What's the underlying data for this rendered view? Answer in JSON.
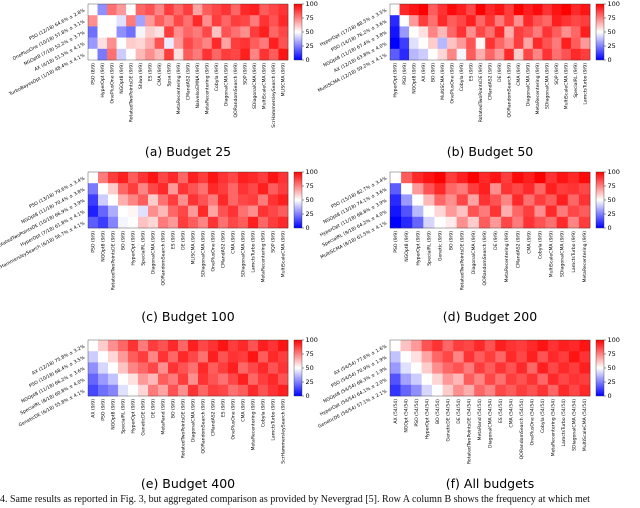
{
  "footer_text": "4.  Same results as reported in Fig. 3, but aggregated comparison as provided by Nevergrad [5]. Row A column B shows the frequency at which met",
  "colormap": {
    "low": "#0000ff",
    "mid": "#ffffff",
    "high": "#ff0000",
    "vmin": 0,
    "vmax": 100,
    "ticks": [
      0,
      25,
      50,
      75,
      100
    ]
  },
  "chart_data": [
    {
      "type": "heatmap",
      "caption": "(a) Budget 25",
      "rows": [
        "PSO (12/18) 64.6% ± 2.8%",
        "OnePlusOne (10/18) 57.8% ± 3.1%",
        "NGOpt8 (7/18) 52.2% ± 3.7%",
        "AX (4/18) 51.5% ± 4.1%",
        "TurboBayesOpt (1/18) 48.4% ± 4.1%"
      ],
      "columns": [
        "PSO (8/9)",
        "HyperOpt (9/9)",
        "OnePlusOne (9/9)",
        "NGOpt8 (9/9)",
        "RotatedTwoPointsDE (9/9)",
        "Shiwa (9/9)",
        "ES (9/9)",
        "CMA (9/9)",
        "Spsa (9/9)",
        "MetaRecentering (9/9)",
        "CMandAS2 (9/9)",
        "NaiveIsoEMNA (9/9)",
        "MetaRecentering (9/9)",
        "Cobyla (9/9)",
        "DiagonalCMA (9/9)",
        "QORandomSearch (9/9)",
        "SQP (9/9)",
        "SDiagonalCMA (9/9)",
        "MultiScaleCMA (9/9)",
        "ScrHammersleySearch (9/9)",
        "MLISCMA (9/9)"
      ],
      "values": [
        [
          null,
          28,
          78,
          70,
          50,
          80,
          84,
          74,
          88,
          80,
          88,
          68,
          82,
          86,
          90,
          80,
          92,
          94,
          82,
          86,
          90
        ],
        [
          72,
          null,
          50,
          44,
          76,
          32,
          70,
          82,
          74,
          86,
          78,
          92,
          72,
          88,
          80,
          88,
          86,
          76,
          90,
          84,
          92
        ],
        [
          22,
          50,
          null,
          28,
          22,
          48,
          60,
          56,
          88,
          72,
          80,
          76,
          86,
          62,
          84,
          78,
          72,
          88,
          94,
          80,
          86
        ],
        [
          30,
          56,
          72,
          null,
          60,
          58,
          66,
          84,
          46,
          70,
          86,
          80,
          74,
          92,
          68,
          88,
          90,
          82,
          76,
          94,
          84
        ],
        [
          50,
          24,
          78,
          40,
          null,
          64,
          72,
          64,
          88,
          56,
          82,
          76,
          90,
          80,
          88,
          86,
          94,
          74,
          90,
          82,
          96
        ]
      ],
      "cbar_ticks": [
        "100",
        "75",
        "50",
        "25",
        "0"
      ]
    },
    {
      "type": "heatmap",
      "caption": "(b) Budget 50",
      "rows": [
        "HyperOpt (17/18) 88.5% ± 3.5%",
        "PSO (14/18) 76.2% ± 3.6%",
        "NGOpt8 (11/18) 67.4% ± 3.8%",
        "AX (12/18) 63.8% ± 4.0%",
        "MultiSCMA (12/18) 59.2% ± 4.1%"
      ],
      "columns": [
        "HyperOpt (9/9)",
        "PSO (9/9)",
        "NGOpt8 (9/9)",
        "AX (9/9)",
        "BO (9/9)",
        "MultiSCMA (9/9)",
        "OnePlusOne (9/9)",
        "Cobyla (9/9)",
        "ES (9/9)",
        "RotatedTwoPointsDE (9/9)",
        "CMandAS2 (9/9)",
        "DE (9/9)",
        "QORandomSearch (9/9)",
        "CMA (9/9)",
        "DiagonalCMA (9/9)",
        "MetaRecentering (9/9)",
        "SDiagonalCMA (9/9)",
        "SQP (9/9)",
        "MultiScaleCMA (9/9)",
        "SpecialRL (9/9)",
        "LamctsTurbo (9/9)"
      ],
      "values": [
        [
          null,
          92,
          96,
          100,
          82,
          90,
          98,
          94,
          86,
          100,
          92,
          96,
          88,
          100,
          94,
          98,
          90,
          96,
          100,
          92,
          96
        ],
        [
          8,
          null,
          70,
          88,
          78,
          92,
          82,
          86,
          94,
          80,
          90,
          76,
          88,
          72,
          92,
          84,
          80,
          94,
          90,
          86,
          88
        ],
        [
          4,
          30,
          null,
          56,
          74,
          64,
          80,
          90,
          72,
          86,
          78,
          92,
          66,
          88,
          84,
          76,
          90,
          82,
          72,
          80,
          94
        ],
        [
          0,
          12,
          44,
          null,
          60,
          36,
          62,
          70,
          84,
          52,
          90,
          80,
          72,
          88,
          68,
          92,
          84,
          76,
          94,
          82,
          70
        ],
        [
          18,
          8,
          36,
          40,
          null,
          58,
          74,
          48,
          82,
          66,
          80,
          70,
          92,
          60,
          86,
          74,
          90,
          78,
          84,
          92,
          88
        ]
      ],
      "cbar_ticks": [
        "100",
        "75",
        "50",
        "25",
        "0"
      ]
    },
    {
      "type": "heatmap",
      "caption": "(c) Budget 100",
      "rows": [
        "PSO (13/18) 79.6% ± 3.4%",
        "NGOpt8 (11/18) 70.4% ± 3.8%",
        "RotatedTwoPointsDE (10/18) 66.9% ± 3.9%",
        "HyperOpt (7/18) 61.8% ± 4.1%",
        "ScrHammersleySearch (6/18) 56.7% ± 4.1%"
      ],
      "columns": [
        "PSO (9/9)",
        "NGOpt8 (9/9)",
        "RotatedTwoPointsDE (9/9)",
        "BO (9/9)",
        "HyperOpt (9/9)",
        "SpecialRL (9/9)",
        "DiagonalCMA (9/9)",
        "QORandomSearch (9/9)",
        "ES (9/9)",
        "DE (9/9)",
        "MLISCMA (9/9)",
        "SDiagonalCMA (9/9)",
        "OnePlusOne (9/9)",
        "CMandAS2 (9/9)",
        "CMA (9/9)",
        "SDiagonalCMA (9/9)",
        "LamctsTurbo (9/9)",
        "MetaRecentering (9/9)",
        "SQP (9/9)",
        "MultiScaleCMA (9/9)"
      ],
      "values": [
        [
          null,
          76,
          88,
          94,
          82,
          90,
          96,
          86,
          92,
          80,
          94,
          88,
          96,
          90,
          86,
          94,
          92,
          88,
          96,
          90
        ],
        [
          24,
          null,
          60,
          80,
          88,
          74,
          86,
          92,
          70,
          90,
          84,
          78,
          92,
          88,
          80,
          90,
          86,
          94,
          82,
          88
        ],
        [
          12,
          40,
          null,
          66,
          74,
          82,
          60,
          78,
          88,
          72,
          90,
          84,
          76,
          92,
          80,
          86,
          88,
          76,
          90,
          94
        ],
        [
          6,
          20,
          34,
          null,
          52,
          44,
          72,
          64,
          80,
          86,
          70,
          92,
          68,
          84,
          90,
          78,
          72,
          90,
          86,
          82
        ],
        [
          18,
          12,
          26,
          48,
          null,
          62,
          58,
          76,
          70,
          88,
          82,
          74,
          90,
          78,
          86,
          82,
          94,
          80,
          88,
          92
        ]
      ],
      "cbar_ticks": [
        "100",
        "75",
        "50",
        "25",
        "0"
      ]
    },
    {
      "type": "heatmap",
      "caption": "(d) Budget 200",
      "rows": [
        "PSO (15/18) 82.7% ± 3.4%",
        "NGOpt8 (13/18) 74.1% ± 3.6%",
        "HyperOpt (11/18) 68.8% ± 3.9%",
        "SpecialRL (9/18) 64.2% ± 4.0%",
        "MultiSCMA (8/18) 61.5% ± 4.1%"
      ],
      "columns": [
        "PSO (9/9)",
        "NGOpt8 (9/9)",
        "HyperOpt (9/9)",
        "SpecialRL (9/9)",
        "Genetic (9/9)",
        "BO (9/9)",
        "RotatedTwoPointsDE (9/9)",
        "DiagonalCMA (9/9)",
        "QORandomSearch (9/9)",
        "DE (9/9)",
        "MetaRecentering (9/9)",
        "CMandAS2 (9/9)",
        "CMA (9/9)",
        "Cobyla (9/9)",
        "MultiScaleCMA (9/9)",
        "SDiagonalCMA (9/9)",
        "LamctsTurbo (9/9)",
        "MetaRecentering (9/9)"
      ],
      "values": [
        [
          null,
          82,
          92,
          96,
          100,
          88,
          94,
          100,
          92,
          96,
          88,
          98,
          94,
          100,
          90,
          96,
          92,
          98
        ],
        [
          18,
          null,
          70,
          84,
          92,
          80,
          76,
          88,
          94,
          72,
          90,
          86,
          92,
          80,
          94,
          88,
          90,
          86
        ],
        [
          8,
          30,
          null,
          64,
          80,
          72,
          86,
          68,
          90,
          84,
          74,
          92,
          78,
          88,
          82,
          94,
          80,
          90
        ],
        [
          4,
          16,
          36,
          null,
          58,
          70,
          62,
          84,
          76,
          90,
          66,
          80,
          88,
          72,
          92,
          76,
          86,
          82
        ],
        [
          0,
          8,
          20,
          42,
          null,
          54,
          72,
          60,
          82,
          70,
          86,
          76,
          90,
          84,
          78,
          92,
          74,
          88
        ]
      ],
      "cbar_ticks": [
        "100",
        "75",
        "50",
        "25",
        "0"
      ]
    },
    {
      "type": "heatmap",
      "caption": "(e) Budget 400",
      "rows": [
        "AX (12/18) 75.8% ± 3.2%",
        "PSO (10/18) 68.4% ± 3.5%",
        "NGOpt8 (11/18) 66.2% ± 3.6%",
        "SpecialRL (8/18) 60.8% ± 4.0%",
        "GeneticDE (6/18) 55.8% ± 4.1%"
      ],
      "columns": [
        "AX (9/9)",
        "PSO (9/9)",
        "NGOpt8 (9/9)",
        "SpecialRL (9/9)",
        "HyperOpt (9/9)",
        "GeneticDE (9/9)",
        "DE (9/9)",
        "MetaRand (9/9)",
        "BO (9/9)",
        "RotatedTwoPointsDE (9/9)",
        "DiagonalCMA (9/9)",
        "QORandomSearch (9/9)",
        "CMandAS2 (9/9)",
        "ES (9/9)",
        "OnePlusOne (9/9)",
        "CMA (9/9)",
        "MetaRecentering (9/9)",
        "Cobyla (9/9)",
        "LamctsTurbo (9/9)",
        "ScrHammersleySearch (9/9)"
      ],
      "values": [
        [
          null,
          60,
          72,
          80,
          90,
          76,
          88,
          84,
          92,
          80,
          94,
          86,
          90,
          96,
          88,
          92,
          84,
          94,
          90,
          96
        ],
        [
          40,
          null,
          58,
          70,
          82,
          88,
          74,
          90,
          80,
          92,
          86,
          78,
          94,
          84,
          90,
          88,
          96,
          82,
          92,
          88
        ],
        [
          28,
          42,
          null,
          62,
          74,
          80,
          86,
          72,
          90,
          84,
          78,
          92,
          82,
          88,
          94,
          80,
          86,
          92,
          84,
          90
        ],
        [
          20,
          30,
          38,
          null,
          56,
          70,
          64,
          82,
          76,
          88,
          72,
          90,
          84,
          78,
          86,
          94,
          80,
          88,
          92,
          84
        ],
        [
          14,
          22,
          26,
          44,
          null,
          58,
          76,
          68,
          84,
          72,
          90,
          80,
          88,
          86,
          78,
          82,
          92,
          84,
          90,
          94
        ]
      ],
      "cbar_ticks": [
        "100",
        "75",
        "50",
        "25",
        "0"
      ]
    },
    {
      "type": "heatmap",
      "caption": "(f) All budgets",
      "rows": [
        "AX (54/54) 77.6% ± 1.6%",
        "PSO (54/54) 70.9% ± 1.9%",
        "NGOpt8 (54/54) 68.3% ± 1.9%",
        "HyperOpt (54/54) 64.1% ± 2.0%",
        "GeneticDE (54/54) 57.1% ± 2.1%"
      ],
      "columns": [
        "AX (54/54)",
        "NGOpt (54/54)",
        "PSO (54/54)",
        "HyperOpt (54/54)",
        "BO (54/54)",
        "GeneticDE (54/54)",
        "DE (54/54)",
        "RotatedTwoPointsDE (54/54)",
        "MetaRand (54/54)",
        "DiagonalCMA (54/54)",
        "ES (54/54)",
        "CMA (54/54)",
        "QORandomSearch (54/54)",
        "OnePlusOne (54/54)",
        "Cobyla (54/54)",
        "MetaRecentering (54/54)",
        "LamctsTurbo (54/54)",
        "SDiagonalCMA (54/54)",
        "MultiScaleCMA (54/54)"
      ],
      "values": [
        [
          null,
          62,
          70,
          84,
          90,
          80,
          88,
          86,
          92,
          84,
          94,
          90,
          88,
          92,
          96,
          90,
          94,
          92,
          96
        ],
        [
          38,
          null,
          56,
          68,
          80,
          86,
          74,
          90,
          82,
          88,
          80,
          92,
          86,
          94,
          84,
          92,
          88,
          96,
          90
        ],
        [
          30,
          44,
          null,
          60,
          72,
          80,
          84,
          76,
          88,
          82,
          90,
          84,
          92,
          80,
          94,
          86,
          92,
          88,
          94
        ],
        [
          16,
          32,
          40,
          null,
          58,
          70,
          64,
          82,
          74,
          86,
          78,
          88,
          84,
          90,
          80,
          92,
          86,
          90,
          88
        ],
        [
          10,
          20,
          28,
          42,
          null,
          60,
          72,
          66,
          80,
          74,
          86,
          82,
          88,
          84,
          90,
          80,
          92,
          86,
          92
        ]
      ],
      "cbar_ticks": [
        "100",
        "75",
        "50",
        "25",
        "0"
      ]
    }
  ]
}
